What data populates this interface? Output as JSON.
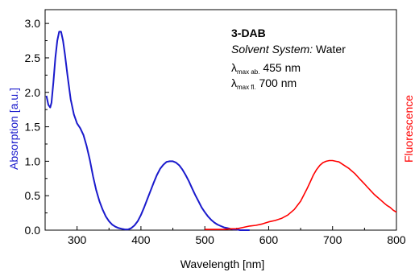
{
  "chart_data": {
    "type": "line",
    "xlabel": "Wavelength [nm]",
    "ylabel_left": "Absorption [a.u.]",
    "ylabel_right": "Fluorescence",
    "xlim": [
      250,
      800
    ],
    "ylim": [
      0,
      3.2
    ],
    "x_ticks": [
      300,
      400,
      500,
      600,
      700,
      800
    ],
    "x_tick_labels": [
      "300",
      "400",
      "500",
      "600",
      "700",
      "800"
    ],
    "y_ticks": [
      0,
      0.5,
      1.0,
      1.5,
      2.0,
      2.5,
      3.0
    ],
    "y_tick_labels": [
      "0.0",
      "0.5",
      "1.0",
      "1.5",
      "2.0",
      "2.5",
      "3.0"
    ],
    "grid": false,
    "colors": {
      "absorption": "#1a1acc",
      "fluorescence": "#ff0000",
      "axis": "#000000"
    },
    "annotation": {
      "compound": "3-DAB",
      "solvent_label": "Solvent System:",
      "solvent_value": " Water",
      "lambda_symbol": "λ",
      "abs_sub": "max ab.",
      "abs_value": " 455 nm",
      "fl_sub": "max fl.",
      "fl_value": " 700 nm"
    },
    "series": [
      {
        "id": "absorption",
        "axis": "left",
        "x": [
          252,
          255,
          258,
          260,
          263,
          266,
          269,
          272,
          275,
          278,
          281,
          285,
          290,
          295,
          300,
          305,
          310,
          315,
          320,
          325,
          330,
          335,
          340,
          345,
          350,
          355,
          360,
          365,
          370,
          375,
          380,
          385,
          390,
          395,
          400,
          405,
          410,
          415,
          420,
          425,
          430,
          435,
          440,
          445,
          450,
          455,
          460,
          465,
          470,
          475,
          480,
          485,
          490,
          495,
          500,
          505,
          510,
          515,
          520,
          525,
          530,
          535,
          540,
          545,
          550,
          555,
          560,
          565,
          570
        ],
        "y": [
          1.95,
          1.82,
          1.78,
          1.85,
          2.15,
          2.5,
          2.75,
          2.88,
          2.88,
          2.75,
          2.55,
          2.25,
          1.9,
          1.68,
          1.55,
          1.48,
          1.38,
          1.22,
          1.02,
          0.78,
          0.58,
          0.42,
          0.3,
          0.2,
          0.13,
          0.08,
          0.05,
          0.03,
          0.02,
          0.01,
          0.01,
          0.03,
          0.07,
          0.13,
          0.22,
          0.33,
          0.45,
          0.57,
          0.69,
          0.8,
          0.89,
          0.95,
          0.99,
          1.0,
          1.0,
          0.98,
          0.94,
          0.88,
          0.8,
          0.71,
          0.61,
          0.51,
          0.42,
          0.33,
          0.26,
          0.2,
          0.15,
          0.11,
          0.08,
          0.06,
          0.04,
          0.03,
          0.02,
          0.01,
          0.01,
          0.0,
          0.0,
          0.0,
          0.0
        ]
      },
      {
        "id": "fluorescence",
        "axis": "left",
        "x": [
          500,
          510,
          520,
          530,
          540,
          550,
          560,
          570,
          580,
          590,
          600,
          610,
          620,
          630,
          640,
          650,
          660,
          665,
          670,
          675,
          680,
          685,
          690,
          695,
          700,
          705,
          710,
          715,
          720,
          725,
          730,
          735,
          740,
          745,
          750,
          755,
          760,
          765,
          770,
          775,
          780,
          785,
          790,
          795,
          800
        ],
        "y": [
          0.01,
          0.01,
          0.01,
          0.01,
          0.02,
          0.02,
          0.04,
          0.06,
          0.07,
          0.09,
          0.12,
          0.14,
          0.17,
          0.22,
          0.3,
          0.42,
          0.6,
          0.7,
          0.8,
          0.88,
          0.94,
          0.98,
          1.0,
          1.01,
          1.01,
          1.0,
          0.99,
          0.96,
          0.93,
          0.9,
          0.86,
          0.82,
          0.77,
          0.72,
          0.67,
          0.62,
          0.57,
          0.52,
          0.48,
          0.44,
          0.4,
          0.36,
          0.33,
          0.29,
          0.26
        ]
      }
    ]
  }
}
